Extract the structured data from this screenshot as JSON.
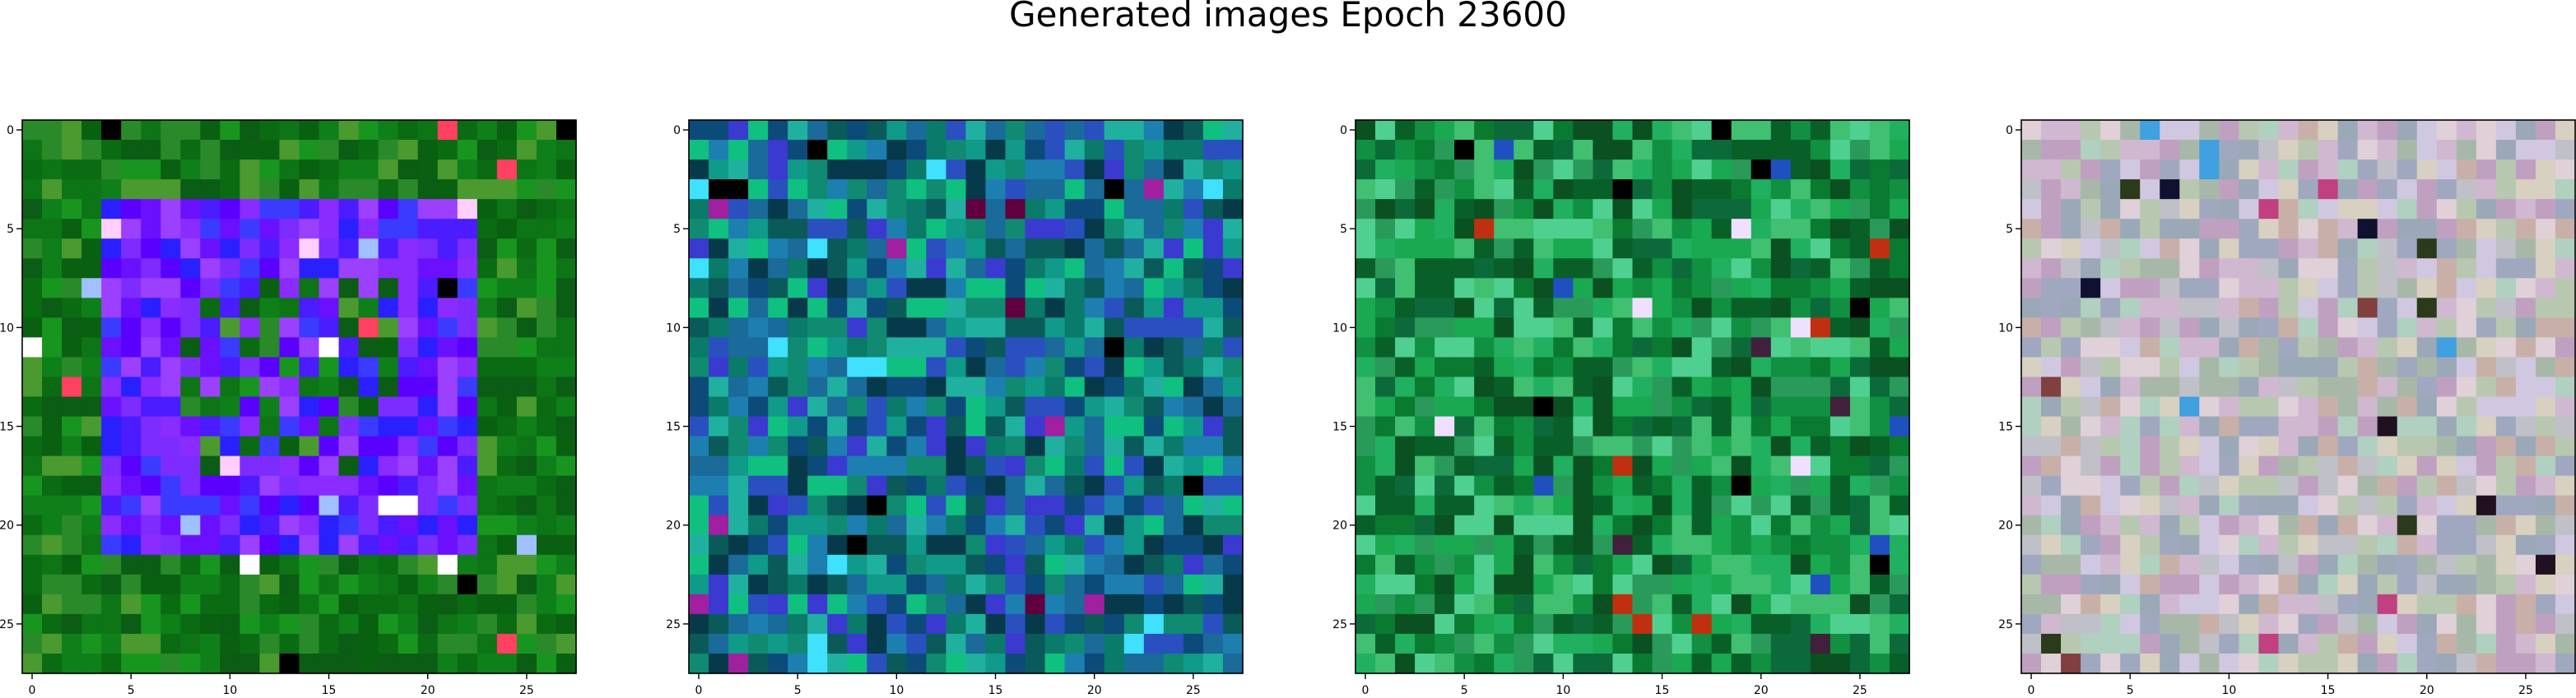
{
  "figure": {
    "title": "Generated images Epoch 23600"
  },
  "chart_data": {
    "type": "heatmap",
    "title": "Generated images Epoch 23600",
    "grid": false,
    "image_shape": [
      28,
      28,
      3
    ],
    "panels": [
      {
        "name": "",
        "description_palette": "dark and bright greens with a violet-blue square ring",
        "xlim": [
          -0.5,
          27.5
        ],
        "ylim": [
          27.5,
          -0.5
        ],
        "xticks": [
          0,
          5,
          10,
          15,
          20,
          25
        ],
        "yticks": [
          0,
          5,
          10,
          15,
          20,
          25
        ],
        "xtick_labels": [
          "0",
          "5",
          "10",
          "15",
          "20",
          "25"
        ],
        "ytick_labels": [
          "0",
          "5",
          "10",
          "15",
          "20",
          "25"
        ],
        "background_colors": [
          "#0a6b12",
          "#0f7f1a",
          "#18951f",
          "#086010",
          "#2a8a2a",
          "#0d7515",
          "#4a9a30",
          "#0b5c14"
        ],
        "ring_colors": [
          "#6a10ff",
          "#4a1cff",
          "#8a2bff",
          "#2a20ff",
          "#5a00ff",
          "#7d2cff",
          "#3b3bff",
          "#9b40ff"
        ],
        "ring_rows": [
          4,
          21
        ],
        "ring_cols": [
          4,
          22
        ],
        "ring_thickness": 4,
        "accent_colors": [
          "#ffffff",
          "#ff4060",
          "#ff5010",
          "#000000",
          "#ffd0ff",
          "#a0c0ff"
        ]
      },
      {
        "name": "",
        "description_palette": "teal, cyan, blue and green noise",
        "xlim": [
          -0.5,
          27.5
        ],
        "ylim": [
          27.5,
          -0.5
        ],
        "xticks": [
          0,
          5,
          10,
          15,
          20,
          25
        ],
        "yticks": [
          0,
          5,
          10,
          15,
          20,
          25
        ],
        "xtick_labels": [
          "0",
          "5",
          "10",
          "15",
          "20",
          "25"
        ],
        "ytick_labels": [
          "0",
          "5",
          "10",
          "15",
          "20",
          "25"
        ],
        "background_colors": [
          "#0a7a6a",
          "#108a70",
          "#1a6a9a",
          "#0f9a8a",
          "#2a50c0",
          "#0a5a5a",
          "#20b0a0",
          "#3a3ad0",
          "#0c4a7a",
          "#10c080",
          "#1d7fb0",
          "#063a4a"
        ],
        "accent_colors": [
          "#a020a0",
          "#600040",
          "#000000",
          "#40e0ff"
        ]
      },
      {
        "name": "",
        "description_palette": "greens with occasional dark and teal cells",
        "xlim": [
          -0.5,
          27.5
        ],
        "ylim": [
          27.5,
          -0.5
        ],
        "xticks": [
          0,
          5,
          10,
          15,
          20,
          25
        ],
        "yticks": [
          0,
          5,
          10,
          15,
          20,
          25
        ],
        "xtick_labels": [
          "0",
          "5",
          "10",
          "15",
          "20",
          "25"
        ],
        "ytick_labels": [
          "0",
          "5",
          "10",
          "15",
          "20",
          "25"
        ],
        "background_colors": [
          "#0a7a30",
          "#109040",
          "#1aa850",
          "#086028",
          "#20b060",
          "#0c6a3a",
          "#40c070",
          "#0a5020",
          "#2a9a5a",
          "#50d090"
        ],
        "accent_colors": [
          "#000000",
          "#c03010",
          "#f0e0ff",
          "#2050c0",
          "#40203a"
        ]
      },
      {
        "name": "",
        "description_palette": "pastel grey, pink, mint and lavender noise",
        "xlim": [
          -0.5,
          27.5
        ],
        "ylim": [
          27.5,
          -0.5
        ],
        "xticks": [
          0,
          5,
          10,
          15,
          20,
          25
        ],
        "yticks": [
          0,
          5,
          10,
          15,
          20,
          25
        ],
        "xtick_labels": [
          "0",
          "5",
          "10",
          "15",
          "20",
          "25"
        ],
        "ytick_labels": [
          "0",
          "5",
          "10",
          "15",
          "20",
          "25"
        ],
        "background_colors": [
          "#c0c0c8",
          "#d0b8d0",
          "#b0d0c0",
          "#a0a8c0",
          "#d8d0c0",
          "#c0a0c0",
          "#b8c8b0",
          "#d0c8e0",
          "#a8b8a8",
          "#e0d0d8",
          "#9aa8b8",
          "#c8b0a8"
        ],
        "accent_colors": [
          "#201020",
          "#c04080",
          "#2a3a1a",
          "#101030",
          "#40a0e0",
          "#804040"
        ]
      }
    ]
  }
}
